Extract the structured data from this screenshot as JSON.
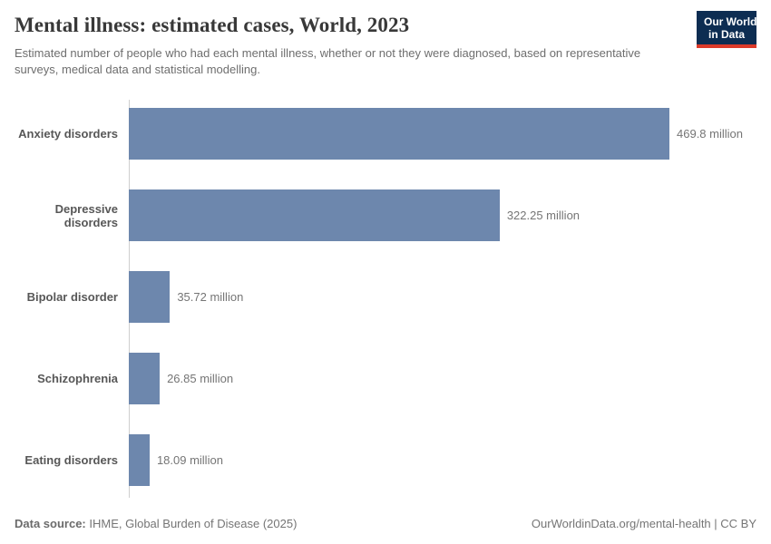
{
  "header": {
    "title": "Mental illness: estimated cases, World, 2023",
    "subtitle": "Estimated number of people who had each mental illness, whether or not they were diagnosed, based on representative surveys, medical data and statistical modelling.",
    "logo": {
      "line1": "Our World",
      "line2": "in Data"
    }
  },
  "chart_data": {
    "type": "bar",
    "orientation": "horizontal",
    "title": "Mental illness: estimated cases, World, 2023",
    "categories": [
      "Anxiety disorders",
      "Depressive disorders",
      "Bipolar disorder",
      "Schizophrenia",
      "Eating disorders"
    ],
    "values": [
      469.8,
      322.25,
      35.72,
      26.85,
      18.09
    ],
    "value_labels": [
      "469.8 million",
      "322.25 million",
      "35.72 million",
      "26.85 million",
      "18.09 million"
    ],
    "unit": "million",
    "xlim": [
      0,
      469.8
    ],
    "grid": false,
    "legend": "none",
    "bar_color": "#6d87ad"
  },
  "footer": {
    "source_label": "Data source:",
    "source_text": " IHME, Global Burden of Disease (2025)",
    "link_text": "OurWorldinData.org/mental-health | CC BY"
  },
  "colors": {
    "bar": "#6d87ad",
    "title": "#383838",
    "subtitle": "#6e6e6e",
    "category_label": "#575757",
    "value_label": "#757575",
    "axis_line": "#cfcfcf",
    "logo_navy": "#0d2d52",
    "logo_red": "#dc3a2a"
  }
}
